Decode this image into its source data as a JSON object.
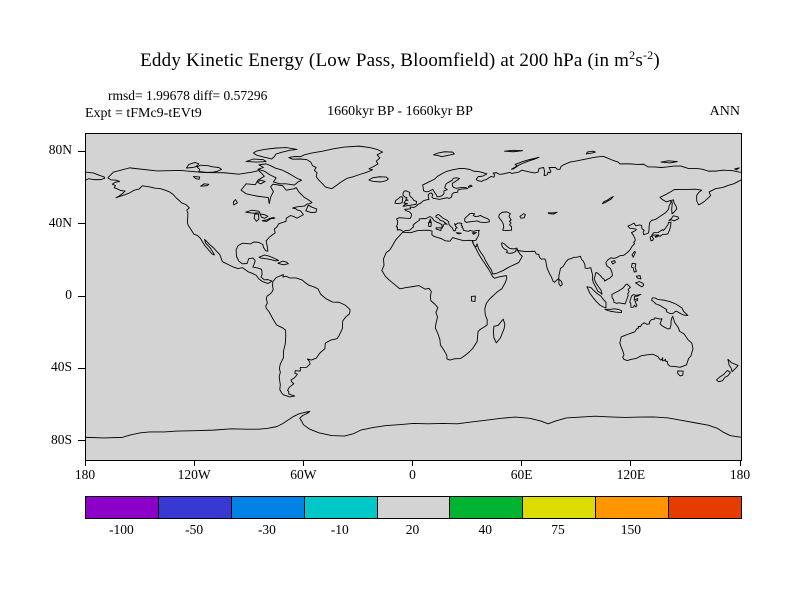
{
  "header": {
    "title_text": "Eddy Kinetic Energy (Low Pass, Bloomfield) at 200 hPa (in m",
    "title_sup1": "2",
    "title_mid": "s",
    "title_sup2": "-2",
    "title_close": ")",
    "stats": "rmsd= 1.99678  diff= 0.57296",
    "experiment": "Expt = tFMc9-tEVt9",
    "period": "1660kyr BP - 1660kyr BP",
    "season": "ANN"
  },
  "map": {
    "background_color": "#d3d3d3",
    "y_ticks": [
      {
        "label": "80N",
        "lat": 80
      },
      {
        "label": "40N",
        "lat": 40
      },
      {
        "label": "0",
        "lat": 0
      },
      {
        "label": "40S",
        "lat": -40
      },
      {
        "label": "80S",
        "lat": -80
      }
    ],
    "x_ticks": [
      {
        "label": "180",
        "lon": -180
      },
      {
        "label": "120W",
        "lon": -120
      },
      {
        "label": "60W",
        "lon": -60
      },
      {
        "label": "0",
        "lon": 0
      },
      {
        "label": "60E",
        "lon": 60
      },
      {
        "label": "120E",
        "lon": 120
      },
      {
        "label": "180",
        "lon": 180
      }
    ]
  },
  "colorbar": {
    "colors": [
      "#8c00c8",
      "#3838d2",
      "#0082e6",
      "#00c8c8",
      "#d3d3d3",
      "#00b432",
      "#dcdc00",
      "#ff9600",
      "#e63c00"
    ],
    "tick_labels": [
      "-100",
      "-50",
      "-30",
      "-10",
      "20",
      "40",
      "75",
      "150"
    ]
  },
  "chart_data": {
    "type": "heatmap",
    "title": "Eddy Kinetic Energy (Low Pass, Bloomfield) at 200 hPa (in m2s-2)",
    "subtitle": "1660kyr BP - 1660kyr BP",
    "experiment": "tFMc9-tEVt9",
    "season": "ANN",
    "stats": {
      "rmsd": 1.99678,
      "diff": 0.57296
    },
    "projection": "equirectangular world map with coastlines",
    "x_axis": {
      "label": "longitude",
      "ticks": [
        "180",
        "120W",
        "60W",
        "0",
        "60E",
        "120E",
        "180"
      ],
      "range_deg": [
        -180,
        180
      ]
    },
    "y_axis": {
      "label": "latitude",
      "ticks": [
        "80N",
        "40N",
        "0",
        "40S",
        "80S"
      ],
      "range_deg": [
        -90,
        90
      ]
    },
    "colorbar_levels": [
      -100,
      -50,
      -30,
      -10,
      20,
      40,
      75,
      150
    ],
    "colorbar_colors": [
      "#8c00c8",
      "#3838d2",
      "#0082e6",
      "#00c8c8",
      "#d3d3d3",
      "#00b432",
      "#dcdc00",
      "#ff9600",
      "#e63c00"
    ],
    "field": "difference field is uniform (within -10..20 bin), entire map shaded light gray"
  }
}
